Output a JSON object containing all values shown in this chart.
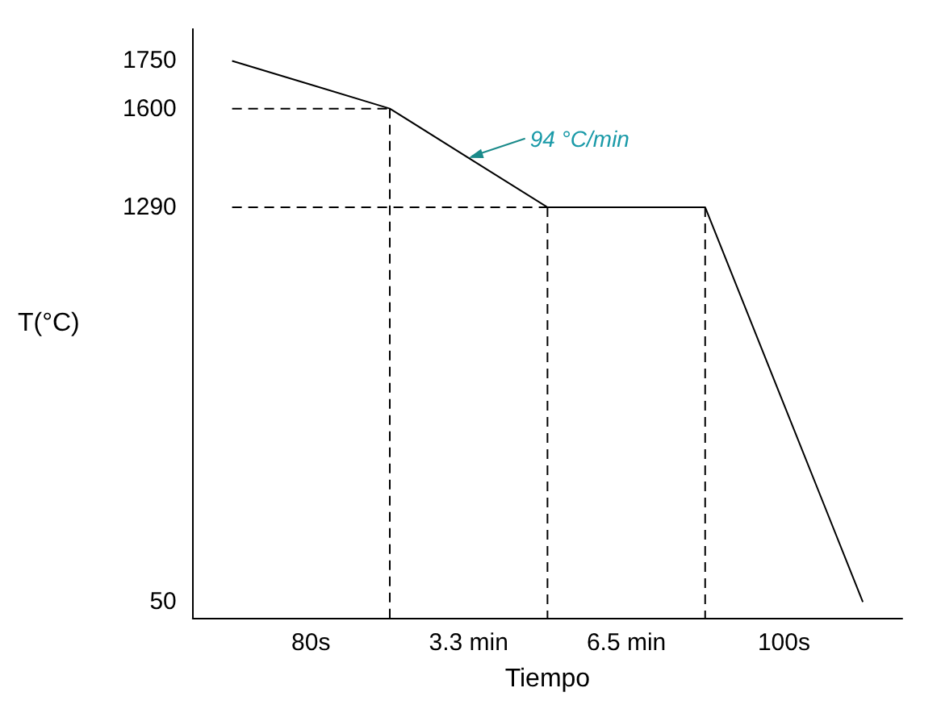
{
  "chart_data": {
    "type": "line",
    "xlabel": "Tiempo",
    "ylabel": "T(°C)",
    "categories": [
      null,
      "80s",
      null,
      "3.3 min",
      null,
      "6.5 min",
      null,
      "100s",
      null
    ],
    "series": [
      {
        "color": "#000000",
        "values": [
          1750,
          1675,
          1600,
          1445,
          1290,
          1290,
          1290,
          670,
          50
        ]
      }
    ],
    "ylim": [
      0,
      1850
    ],
    "yticks": [
      50,
      1290,
      1600,
      1750
    ],
    "ref_lines": [
      {
        "axis": "y",
        "value": 1600,
        "color": "#000000",
        "line_style": "dashed"
      },
      {
        "axis": "y",
        "value": 1290,
        "color": "#000000",
        "line_style": "dashed"
      }
    ],
    "annotations": [
      {
        "text": "94 °C/min",
        "x": "3.3 min",
        "y": 1445
      }
    ],
    "marker": "none",
    "line_style": "solid"
  }
}
